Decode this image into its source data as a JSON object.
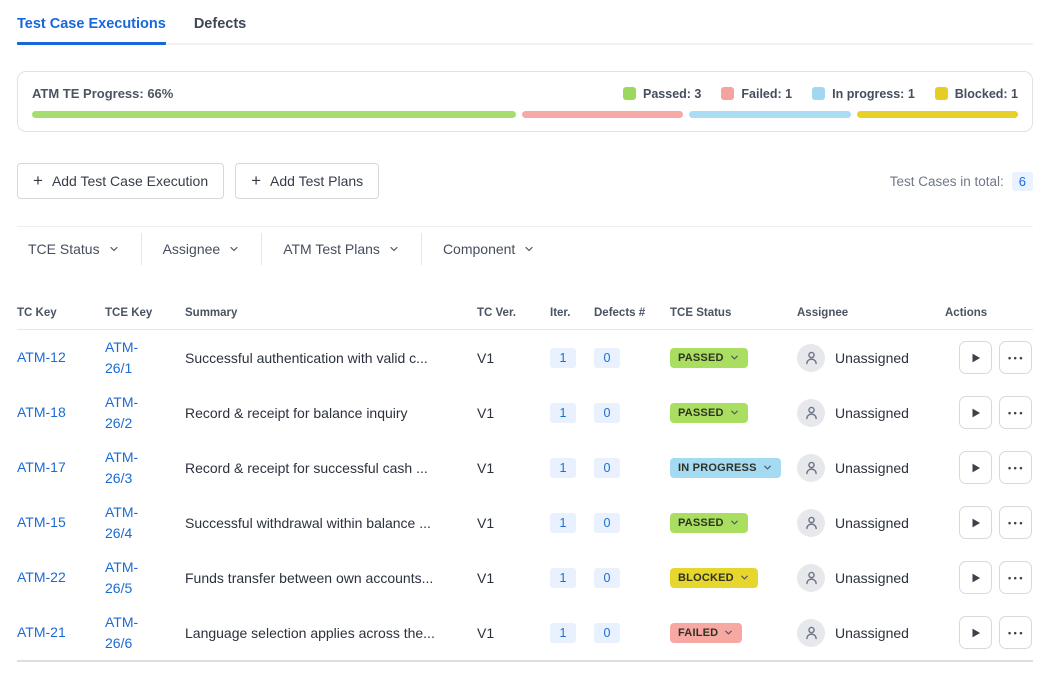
{
  "tabs": [
    {
      "label": "Test Case Executions",
      "active": true
    },
    {
      "label": "Defects",
      "active": false
    }
  ],
  "progress": {
    "label": "ATM TE Progress: 66%",
    "legend": [
      {
        "label": "Passed: 3",
        "color": "#9bd95e"
      },
      {
        "label": "Failed: 1",
        "color": "#f5a3a0"
      },
      {
        "label": "In progress: 1",
        "color": "#a3d7f1"
      },
      {
        "label": "Blocked: 1",
        "color": "#e6cd25"
      }
    ],
    "segments": [
      {
        "name": "passed",
        "count": 3,
        "flex": 3,
        "color": "#a6dd71"
      },
      {
        "name": "failed",
        "count": 1,
        "flex": 1,
        "color": "#f5aaa7"
      },
      {
        "name": "in_progress",
        "count": 1,
        "flex": 1,
        "color": "#aadcf3"
      },
      {
        "name": "blocked",
        "count": 1,
        "flex": 1,
        "color": "#e7d02b"
      }
    ]
  },
  "toolbar": {
    "add_tce_label": "Add Test Case Execution",
    "add_plans_label": "Add Test Plans",
    "total_label": "Test Cases in total:",
    "total_value": "6"
  },
  "filters": [
    {
      "label": "TCE Status"
    },
    {
      "label": "Assignee"
    },
    {
      "label": "ATM Test Plans"
    },
    {
      "label": "Component"
    }
  ],
  "icons": {
    "plus": "+",
    "ellipsis": "•••"
  },
  "colors": {
    "accent_blue": "#1868db",
    "link_blue": "#1b6bd4",
    "badge_passed": "#a9de60",
    "badge_in_progress": "#a5daf3",
    "badge_blocked": "#e7d62e",
    "badge_failed": "#f7a8a2",
    "count_badge_bg": "#e8f1fd"
  },
  "table": {
    "headers": [
      "TC Key",
      "TCE Key",
      "Summary",
      "TC Ver.",
      "Iter.",
      "Defects #",
      "TCE Status",
      "Assignee",
      "Actions"
    ],
    "rows": [
      {
        "tc_key": "ATM-12",
        "tce_key": "ATM-26/1",
        "summary": "Successful authentication with valid c...",
        "version": "V1",
        "iter": "1",
        "defects": "0",
        "status": "PASSED",
        "status_type": "passed",
        "assignee": "Unassigned"
      },
      {
        "tc_key": "ATM-18",
        "tce_key": "ATM-26/2",
        "summary": "Record & receipt for balance inquiry",
        "version": "V1",
        "iter": "1",
        "defects": "0",
        "status": "PASSED",
        "status_type": "passed",
        "assignee": "Unassigned"
      },
      {
        "tc_key": "ATM-17",
        "tce_key": "ATM-26/3",
        "summary": "Record & receipt for successful cash ...",
        "version": "V1",
        "iter": "1",
        "defects": "0",
        "status": "IN PROGRESS",
        "status_type": "inprogress",
        "assignee": "Unassigned"
      },
      {
        "tc_key": "ATM-15",
        "tce_key": "ATM-26/4",
        "summary": "Successful withdrawal within balance ...",
        "version": "V1",
        "iter": "1",
        "defects": "0",
        "status": "PASSED",
        "status_type": "passed",
        "assignee": "Unassigned"
      },
      {
        "tc_key": "ATM-22",
        "tce_key": "ATM-26/5",
        "summary": "Funds transfer between own accounts...",
        "version": "V1",
        "iter": "1",
        "defects": "0",
        "status": "BLOCKED",
        "status_type": "blocked",
        "assignee": "Unassigned"
      },
      {
        "tc_key": "ATM-21",
        "tce_key": "ATM-26/6",
        "summary": "Language selection applies across the...",
        "version": "V1",
        "iter": "1",
        "defects": "0",
        "status": "FAILED",
        "status_type": "failed",
        "assignee": "Unassigned"
      }
    ]
  }
}
